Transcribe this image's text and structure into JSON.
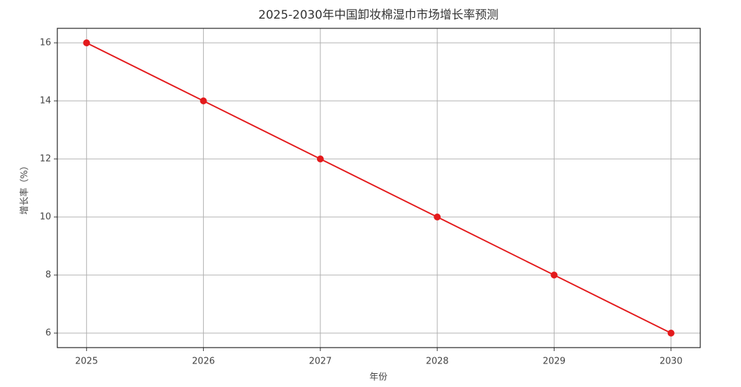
{
  "chart_data": {
    "type": "line",
    "title": "2025-2030年中国卸妆棉湿巾市场增长率预测",
    "x_label": "年份",
    "y_label": "增长率（%）",
    "x": [
      2025,
      2026,
      2027,
      2028,
      2029,
      2030
    ],
    "series": [
      {
        "name": "增长率",
        "color": "#e31a1c",
        "values": [
          16,
          14,
          12,
          10,
          8,
          6
        ]
      }
    ],
    "xlim": [
      2024.75,
      2030.25
    ],
    "xticks": [
      2025,
      2026,
      2027,
      2028,
      2029,
      2030
    ],
    "ylim": [
      5.5,
      16.5
    ],
    "yticks": [
      6,
      8,
      10,
      12,
      14,
      16
    ],
    "grid": true,
    "legend": false
  }
}
